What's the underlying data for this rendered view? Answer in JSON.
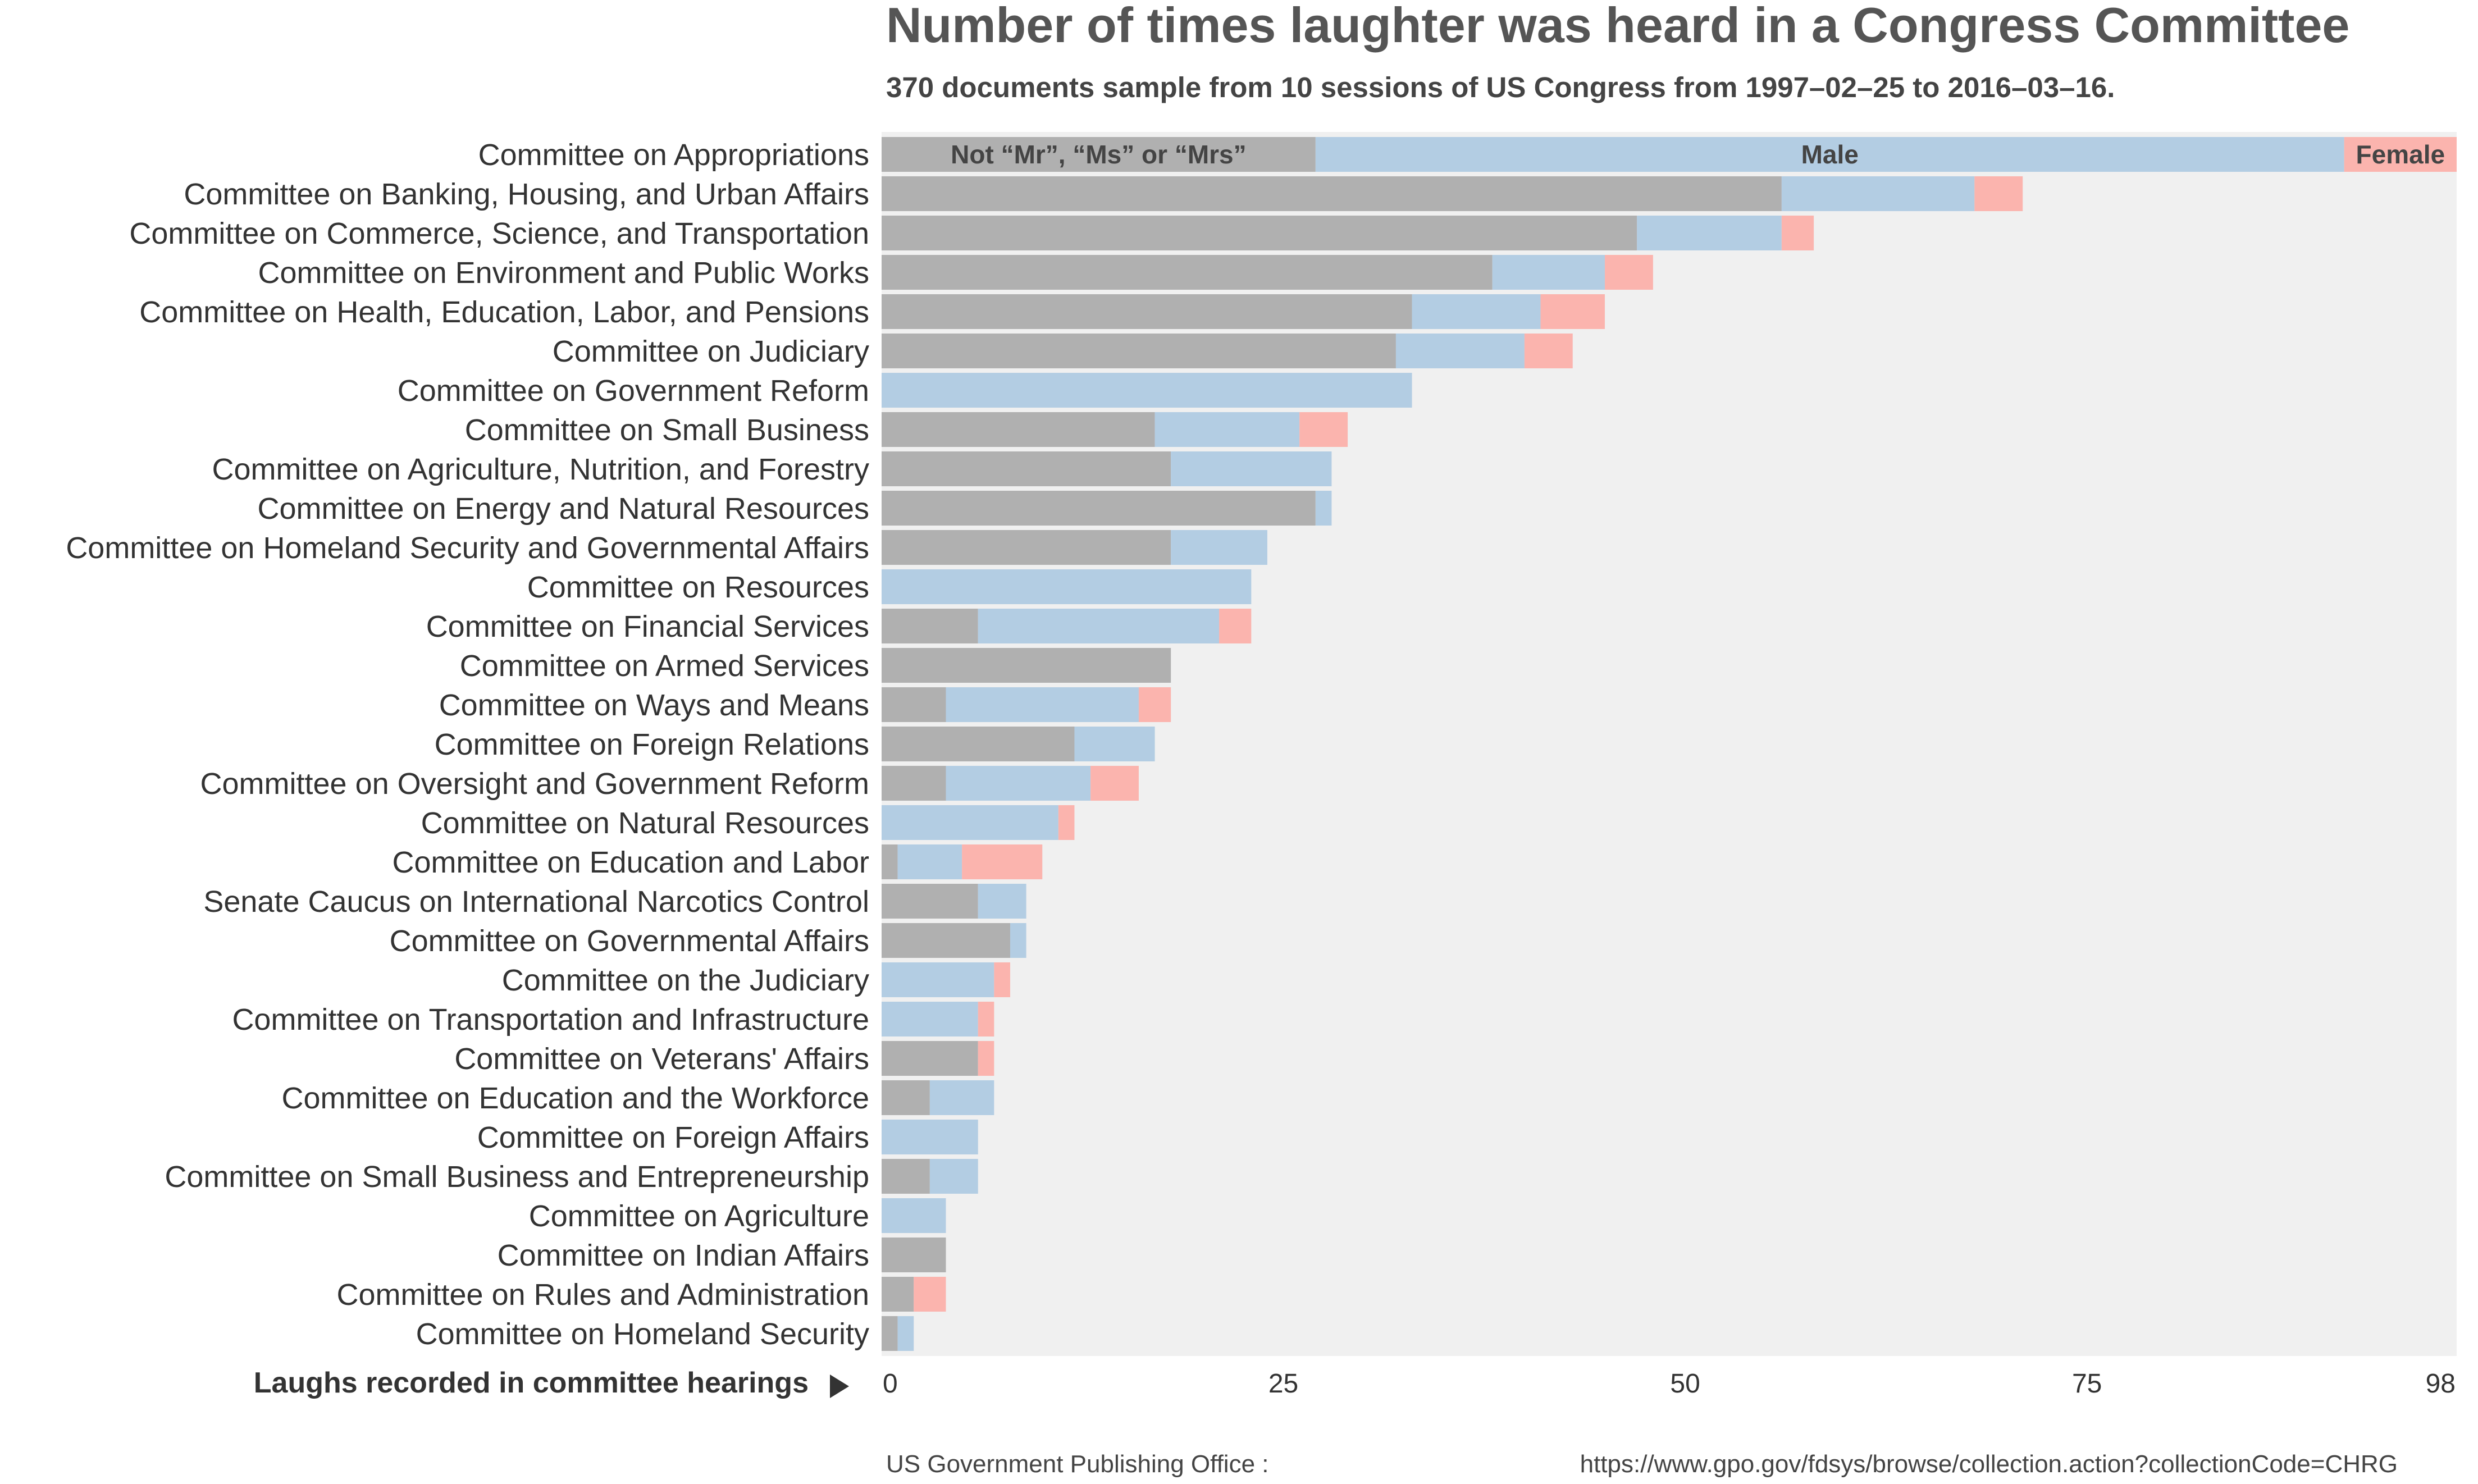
{
  "chart_data": {
    "type": "bar",
    "orientation": "horizontal",
    "stacked": true,
    "title": "Number of times laughter was heard in a Congress Committee",
    "subtitle": "370 documents sample from 10 sessions of US Congress from 1997–02–25 to 2016–03–16.",
    "xlabel": "Laughs recorded in committee hearings",
    "xlabel_arrow": "▶",
    "xlim": [
      0,
      98
    ],
    "xticks": [
      0,
      25,
      50,
      75,
      98
    ],
    "grid": false,
    "categories": [
      "Committee on Appropriations",
      "Committee on Banking, Housing, and Urban Affairs",
      "Committee on Commerce, Science, and Transportation",
      "Committee on Environment and Public Works",
      "Committee on Health, Education, Labor, and Pensions",
      "Committee on Judiciary",
      "Committee on Government Reform",
      "Committee on Small Business",
      "Committee on Agriculture, Nutrition, and Forestry",
      "Committee on Energy and Natural Resources",
      "Committee on Homeland Security and Governmental Affairs",
      "Committee on Resources",
      "Committee on Financial Services",
      "Committee on Armed Services",
      "Committee on Ways and Means",
      "Committee on Foreign Relations",
      "Committee on Oversight and Government Reform",
      "Committee on Natural Resources",
      "Committee on Education and Labor",
      "Senate Caucus on International Narcotics Control",
      "Committee on Governmental Affairs",
      "Committee on the Judiciary",
      "Committee on Transportation and Infrastructure",
      "Committee on Veterans' Affairs",
      "Committee on Education and the Workforce",
      "Committee on Foreign Affairs",
      "Committee on Small Business and Entrepreneurship",
      "Committee on Agriculture",
      "Committee on Indian Affairs",
      "Committee on Rules and Administration",
      "Committee on Homeland Security"
    ],
    "series": [
      {
        "name": "Not “Mr”, “Ms” or “Mrs”",
        "color": "#b0b0b0",
        "values": [
          27,
          56,
          47,
          38,
          33,
          32,
          0,
          17,
          18,
          27,
          18,
          0,
          6,
          18,
          4,
          12,
          4,
          0,
          1,
          6,
          8,
          0,
          0,
          6,
          3,
          0,
          3,
          0,
          4,
          2,
          1
        ]
      },
      {
        "name": "Male",
        "color": "#b3cde3",
        "values": [
          64,
          12,
          9,
          7,
          8,
          8,
          33,
          9,
          10,
          1,
          6,
          23,
          15,
          0,
          12,
          5,
          9,
          11,
          4,
          3,
          1,
          7,
          6,
          0,
          4,
          6,
          3,
          4,
          0,
          0,
          1
        ]
      },
      {
        "name": "Female",
        "color": "#fbb4ae",
        "values": [
          7,
          3,
          2,
          3,
          4,
          3,
          0,
          3,
          0,
          0,
          0,
          0,
          2,
          0,
          2,
          0,
          3,
          1,
          5,
          0,
          0,
          1,
          1,
          1,
          0,
          0,
          0,
          0,
          0,
          2,
          0
        ]
      }
    ],
    "colors": {
      "background_panel": "#f0f0f0"
    }
  },
  "source": {
    "label": "US Government Publishing Office :",
    "url": "https://www.gpo.gov/fdsys/browse/collection.action?collectionCode=CHRG"
  }
}
